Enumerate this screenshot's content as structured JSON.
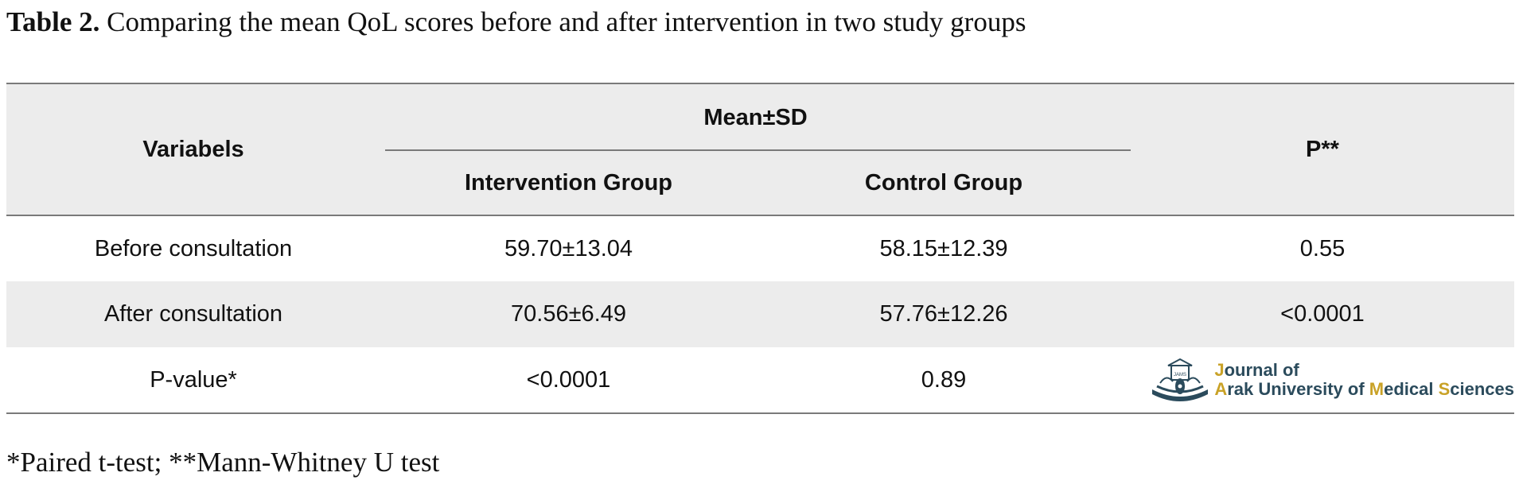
{
  "caption": {
    "label": "Table 2.",
    "text": "Comparing the mean QoL scores before and after intervention in two study groups"
  },
  "table": {
    "header": {
      "variables": "Variabels",
      "group_span": "Mean±SD",
      "intervention": "Intervention Group",
      "control": "Control Group",
      "p": "P**"
    },
    "rows": [
      {
        "variable": "Before consultation",
        "intervention": "59.70±13.04",
        "control": "58.15±12.39",
        "p": "0.55"
      },
      {
        "variable": "After consultation",
        "intervention": "70.56±6.49",
        "control": "57.76±12.26",
        "p": "<0.0001"
      },
      {
        "variable": "P-value*",
        "intervention": "<0.0001",
        "control": "0.89"
      }
    ]
  },
  "logo": {
    "abbr": "JAMS",
    "line1_first": "J",
    "line1_rest": "ournal of",
    "line2_a": "A",
    "line2_b": "rak University of ",
    "line2_m": "M",
    "line2_c": "edical ",
    "line2_s": "S",
    "line2_d": "ciences",
    "colors": {
      "primary": "#2b4b5c",
      "accent": "#c9a227"
    }
  },
  "footnote": "*Paired t-test; **Mann-Whitney U test"
}
